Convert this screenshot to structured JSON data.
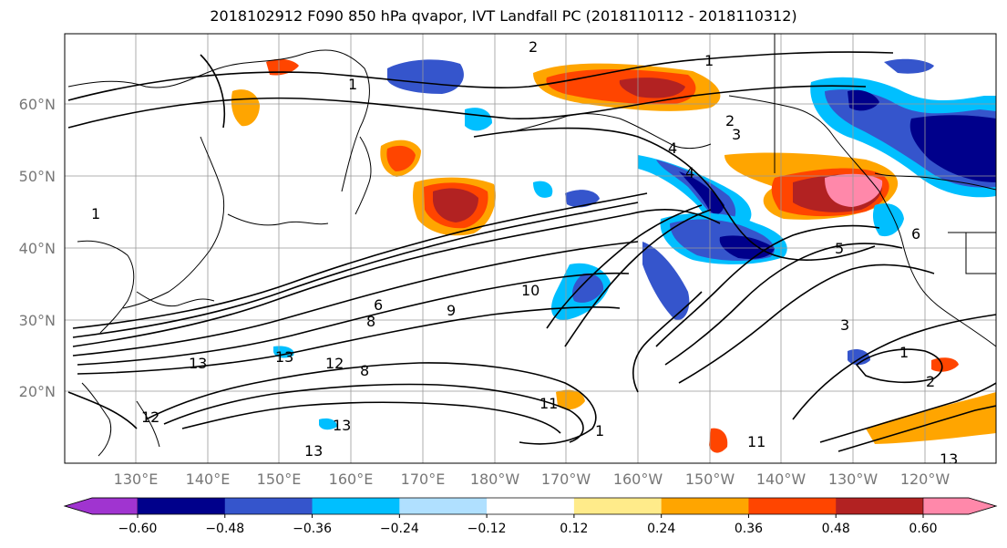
{
  "title": "2018102912 F090 850 hPa qvapor, IVT Landfall PC (2018110112 - 2018110312)",
  "lat_labels": [
    "60°N",
    "50°N",
    "40°N",
    "30°N",
    "20°N"
  ],
  "lon_labels": [
    "130°E",
    "140°E",
    "150°E",
    "160°E",
    "170°E",
    "180°W",
    "170°W",
    "160°W",
    "150°W",
    "140°W",
    "130°W",
    "120°W"
  ],
  "colorbar": {
    "colors": [
      "#a034d0",
      "#00008b",
      "#3555cc",
      "#00bfff",
      "#b0e0ff",
      "#ffffff",
      "#ffeb8a",
      "#ffa500",
      "#ff4500",
      "#b22222",
      "#ff88aa"
    ],
    "tick_labels": [
      "−0.60",
      "−0.48",
      "−0.36",
      "−0.24",
      "−0.12",
      "0.12",
      "0.24",
      "0.36",
      "0.48",
      "0.60"
    ]
  },
  "contour_labels": [
    "1",
    "2",
    "2",
    "3",
    "4",
    "4",
    "5",
    "6",
    "6",
    "8",
    "8",
    "9",
    "10",
    "11",
    "12",
    "13",
    "13",
    "13",
    "13",
    "13",
    "1",
    "1",
    "3",
    "1",
    "2",
    "1",
    "12",
    "11"
  ],
  "features": {
    "positive_color": "#ff4500",
    "negative_color": "#00008b"
  }
}
